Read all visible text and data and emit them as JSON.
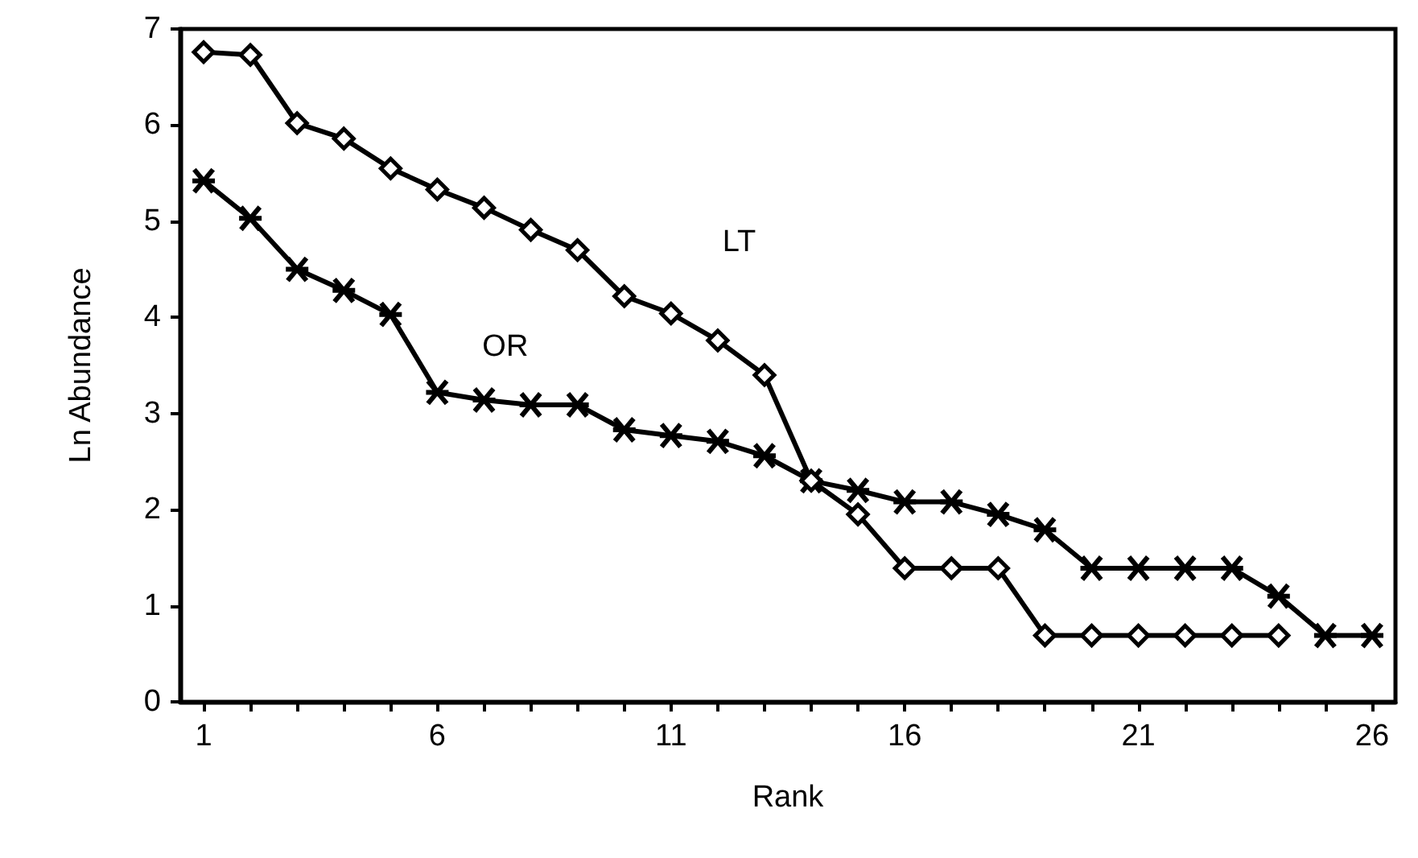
{
  "chart_data": {
    "type": "line",
    "xlabel": "Rank",
    "ylabel": "Ln Abundance",
    "xlim": [
      0.5,
      26.5
    ],
    "ylim": [
      0,
      7
    ],
    "xticks": [
      1,
      {
        "value": 2,
        "label": null
      },
      {
        "value": 3,
        "label": null
      },
      {
        "value": 4,
        "label": null
      },
      {
        "value": 5,
        "label": null
      },
      6,
      {
        "value": 7,
        "label": null
      },
      {
        "value": 8,
        "label": null
      },
      {
        "value": 9,
        "label": null
      },
      {
        "value": 10,
        "label": null
      },
      11,
      {
        "value": 12,
        "label": null
      },
      {
        "value": 13,
        "label": null
      },
      {
        "value": 14,
        "label": null
      },
      {
        "value": 15,
        "label": null
      },
      16,
      {
        "value": 17,
        "label": null
      },
      {
        "value": 18,
        "label": null
      },
      {
        "value": 19,
        "label": null
      },
      {
        "value": 20,
        "label": null
      },
      21,
      {
        "value": 22,
        "label": null
      },
      {
        "value": 23,
        "label": null
      },
      {
        "value": 24,
        "label": null
      },
      {
        "value": 25,
        "label": null
      },
      26
    ],
    "yticks": [
      0,
      1,
      2,
      3,
      4,
      5,
      6,
      7
    ],
    "grid": false,
    "legend": false,
    "line_style": "solid",
    "series": [
      {
        "name": "LT",
        "color": "#000000",
        "marker": "diamond",
        "x": [
          1,
          2,
          3,
          4,
          5,
          6,
          7,
          8,
          9,
          10,
          11,
          12,
          13,
          14,
          15,
          16,
          17,
          18,
          19,
          20,
          21,
          22,
          23,
          24
        ],
        "values": [
          6.76,
          6.73,
          6.02,
          5.86,
          5.55,
          5.33,
          5.14,
          4.91,
          4.7,
          4.22,
          4.04,
          3.76,
          3.4,
          2.3,
          1.95,
          1.39,
          1.39,
          1.39,
          0.69,
          0.69,
          0.69,
          0.69,
          0.69,
          0.69
        ]
      },
      {
        "name": "OR",
        "color": "#000000",
        "marker": "cross",
        "x": [
          1,
          2,
          3,
          4,
          5,
          6,
          7,
          8,
          9,
          10,
          11,
          12,
          13,
          14,
          15,
          16,
          17,
          18,
          19,
          20,
          21,
          22,
          23,
          24,
          25,
          26
        ],
        "values": [
          5.42,
          5.03,
          4.5,
          4.28,
          4.03,
          3.22,
          3.14,
          3.09,
          3.09,
          2.83,
          2.77,
          2.71,
          2.56,
          2.3,
          2.2,
          2.08,
          2.08,
          1.95,
          1.79,
          1.39,
          1.39,
          1.39,
          1.39,
          1.1,
          0.69,
          0.69
        ]
      }
    ]
  }
}
